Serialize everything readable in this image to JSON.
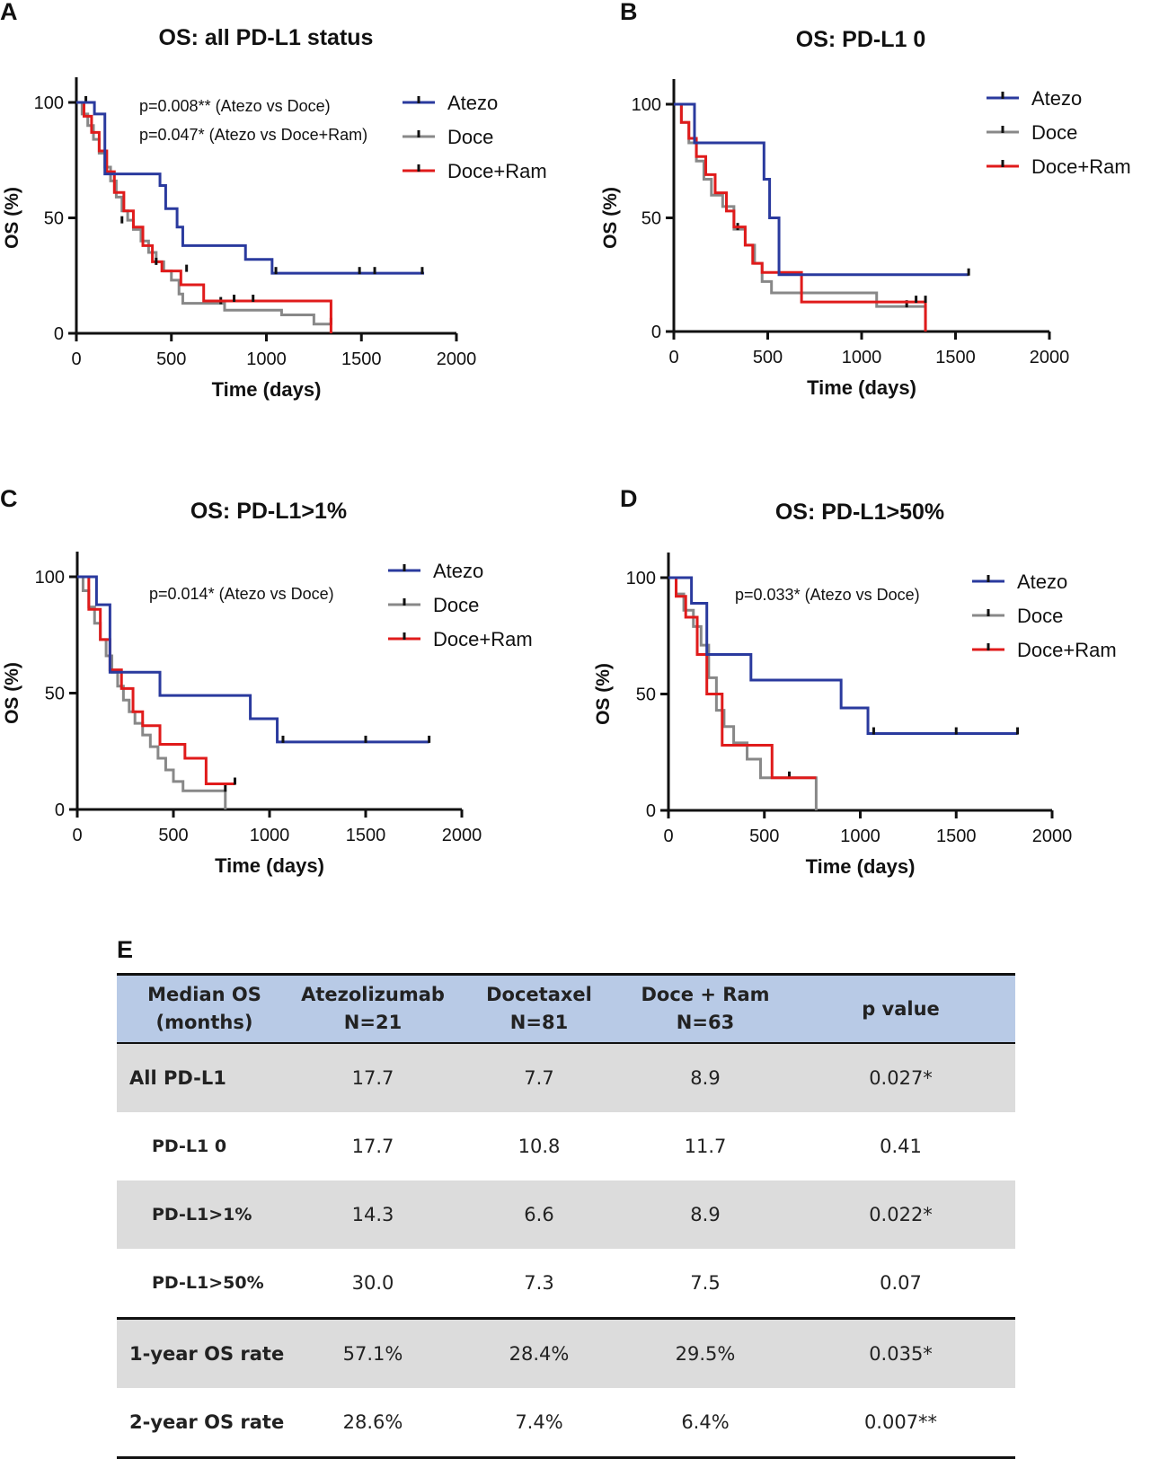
{
  "chart_data": [
    {
      "panel": "A",
      "type": "line",
      "subtype": "kaplan-meier",
      "title": "OS: all PD-L1 status",
      "xlabel": "Time (days)",
      "ylabel": "OS (%)",
      "xlim": [
        0,
        2000
      ],
      "ylim": [
        0,
        100
      ],
      "xticks": [
        "0",
        "500",
        "1000",
        "1500",
        "2000"
      ],
      "yticks": [
        "0",
        "50",
        "100"
      ],
      "annotations": [
        "p=0.008** (Atezo vs Doce)",
        "p=0.047* (Atezo vs Doce+Ram)"
      ],
      "series": [
        {
          "name": "Atezo",
          "color": "#2a3a9e",
          "x": [
            0,
            95,
            150,
            440,
            470,
            530,
            560,
            890,
            1030,
            1830
          ],
          "y": [
            100,
            95,
            69,
            64,
            54,
            46,
            38,
            32,
            26,
            26
          ],
          "censored": [
            [
              1050,
              26
            ],
            [
              1490,
              26
            ],
            [
              1570,
              26
            ],
            [
              1820,
              26
            ]
          ]
        },
        {
          "name": "Doce",
          "color": "#888888",
          "x": [
            0,
            30,
            60,
            90,
            120,
            150,
            180,
            210,
            240,
            270,
            300,
            340,
            380,
            420,
            460,
            500,
            540,
            560,
            780,
            1080,
            1250,
            1340
          ],
          "y": [
            100,
            95,
            90,
            84,
            78,
            72,
            66,
            59,
            53,
            49,
            45,
            40,
            35,
            31,
            27,
            23,
            17,
            13,
            10,
            8,
            4,
            4
          ],
          "censored": [
            [
              50,
              100
            ],
            [
              240,
              48
            ],
            [
              760,
              13
            ],
            [
              1340,
              4
            ]
          ]
        },
        {
          "name": "Doce+Ram",
          "color": "#e01b1b",
          "x": [
            0,
            40,
            80,
            120,
            160,
            200,
            250,
            300,
            350,
            400,
            450,
            500,
            550,
            670,
            1340
          ],
          "y": [
            100,
            94,
            87,
            79,
            70,
            61,
            53,
            46,
            38,
            31,
            27,
            27,
            21,
            14,
            0
          ],
          "censored": [
            [
              420,
              30
            ],
            [
              580,
              27
            ],
            [
              830,
              14
            ],
            [
              930,
              14
            ]
          ]
        }
      ]
    },
    {
      "panel": "B",
      "type": "line",
      "subtype": "kaplan-meier",
      "title": "OS: PD-L1 0",
      "xlabel": "Time (days)",
      "ylabel": "OS (%)",
      "xlim": [
        0,
        2000
      ],
      "ylim": [
        0,
        100
      ],
      "xticks": [
        "0",
        "500",
        "1000",
        "1500",
        "2000"
      ],
      "yticks": [
        "0",
        "50",
        "100"
      ],
      "annotations": [],
      "series": [
        {
          "name": "Atezo",
          "color": "#2a3a9e",
          "x": [
            0,
            110,
            480,
            510,
            560,
            1570
          ],
          "y": [
            100,
            83,
            67,
            50,
            25,
            25
          ],
          "censored": [
            [
              1570,
              25
            ]
          ]
        },
        {
          "name": "Doce",
          "color": "#888888",
          "x": [
            0,
            40,
            80,
            120,
            160,
            200,
            260,
            320,
            380,
            430,
            470,
            520,
            1080,
            1340
          ],
          "y": [
            100,
            92,
            83,
            75,
            67,
            60,
            55,
            45,
            38,
            30,
            22,
            17,
            11,
            0
          ],
          "censored": [
            [
              340,
              45
            ],
            [
              1240,
              11
            ]
          ]
        },
        {
          "name": "Doce+Ram",
          "color": "#e01b1b",
          "x": [
            0,
            40,
            80,
            120,
            170,
            220,
            280,
            320,
            380,
            420,
            470,
            680,
            1340
          ],
          "y": [
            100,
            92,
            85,
            77,
            69,
            61,
            53,
            46,
            38,
            30,
            26,
            13,
            0
          ],
          "censored": [
            [
              1290,
              13
            ],
            [
              1340,
              13
            ]
          ]
        }
      ]
    },
    {
      "panel": "C",
      "type": "line",
      "subtype": "kaplan-meier",
      "title": "OS: PD-L1>1%",
      "xlabel": "Time (days)",
      "ylabel": "OS (%)",
      "xlim": [
        0,
        2000
      ],
      "ylim": [
        0,
        100
      ],
      "xticks": [
        "0",
        "500",
        "1000",
        "1500",
        "2000"
      ],
      "yticks": [
        "0",
        "50",
        "100"
      ],
      "annotations": [
        "p=0.014* (Atezo vs Doce)"
      ],
      "series": [
        {
          "name": "Atezo",
          "color": "#2a3a9e",
          "x": [
            0,
            100,
            170,
            430,
            900,
            1040,
            1830
          ],
          "y": [
            100,
            88,
            59,
            49,
            39,
            29,
            29
          ],
          "censored": [
            [
              1070,
              29
            ],
            [
              1500,
              29
            ],
            [
              1830,
              29
            ]
          ]
        },
        {
          "name": "Doce",
          "color": "#888888",
          "x": [
            0,
            30,
            60,
            90,
            120,
            150,
            180,
            210,
            240,
            270,
            300,
            340,
            380,
            420,
            460,
            500,
            550,
            770
          ],
          "y": [
            100,
            94,
            87,
            80,
            73,
            66,
            59,
            53,
            47,
            42,
            37,
            32,
            27,
            22,
            17,
            12,
            8,
            0
          ],
          "censored": [
            [
              770,
              8
            ]
          ]
        },
        {
          "name": "Doce+Ram",
          "color": "#e01b1b",
          "x": [
            0,
            60,
            120,
            170,
            230,
            290,
            340,
            430,
            560,
            670,
            820
          ],
          "y": [
            100,
            86,
            73,
            60,
            52,
            42,
            36,
            28,
            22,
            11,
            11
          ],
          "censored": [
            [
              820,
              11
            ]
          ]
        }
      ]
    },
    {
      "panel": "D",
      "type": "line",
      "subtype": "kaplan-meier",
      "title": "OS: PD-L1>50%",
      "xlabel": "Time (days)",
      "ylabel": "OS (%)",
      "xlim": [
        0,
        2000
      ],
      "ylim": [
        0,
        100
      ],
      "xticks": [
        "0",
        "500",
        "1000",
        "1500",
        "2000"
      ],
      "yticks": [
        "0",
        "50",
        "100"
      ],
      "annotations": [
        "p=0.033* (Atezo vs Doce)"
      ],
      "series": [
        {
          "name": "Atezo",
          "color": "#2a3a9e",
          "x": [
            0,
            120,
            200,
            430,
            900,
            1040,
            1820
          ],
          "y": [
            100,
            89,
            67,
            56,
            44,
            33,
            33
          ],
          "censored": [
            [
              1070,
              33
            ],
            [
              1500,
              33
            ],
            [
              1820,
              33
            ]
          ]
        },
        {
          "name": "Doce",
          "color": "#888888",
          "x": [
            0,
            40,
            80,
            130,
            170,
            210,
            250,
            290,
            340,
            410,
            480,
            770
          ],
          "y": [
            100,
            93,
            86,
            79,
            71,
            57,
            43,
            36,
            29,
            22,
            14,
            0
          ],
          "censored": [
            [
              630,
              14
            ]
          ]
        },
        {
          "name": "Doce+Ram",
          "color": "#e01b1b",
          "x": [
            0,
            40,
            90,
            150,
            200,
            280,
            540,
            770
          ],
          "y": [
            100,
            92,
            83,
            67,
            50,
            28,
            14,
            14
          ],
          "censored": []
        }
      ]
    }
  ],
  "panels": [
    {
      "letter": "A"
    },
    {
      "letter": "B"
    },
    {
      "letter": "C"
    },
    {
      "letter": "D"
    },
    {
      "letter": "E"
    }
  ],
  "table": {
    "type": "table",
    "headers": [
      [
        "Median OS",
        "(months)"
      ],
      [
        "Atezolizumab",
        "N=21"
      ],
      [
        "Docetaxel",
        "N=81"
      ],
      [
        "Doce + Ram",
        "N=63"
      ],
      [
        "p value"
      ]
    ],
    "rows": [
      {
        "label": "All PD-L1",
        "values": [
          "17.7",
          "7.7",
          "8.9",
          "0.027*"
        ]
      },
      {
        "label": "PD-L1 0",
        "values": [
          "17.7",
          "10.8",
          "11.7",
          "0.41"
        ]
      },
      {
        "label": "PD-L1>1%",
        "values": [
          "14.3",
          "6.6",
          "8.9",
          "0.022*"
        ]
      },
      {
        "label": "PD-L1>50%",
        "values": [
          "30.0",
          "7.3",
          "7.5",
          "0.07"
        ]
      },
      {
        "label": "1-year OS rate",
        "values": [
          "57.1%",
          "28.4%",
          "29.5%",
          "0.035*"
        ]
      },
      {
        "label": "2-year OS rate",
        "values": [
          "28.6%",
          "7.4%",
          "6.4%",
          "0.007**"
        ]
      }
    ]
  }
}
